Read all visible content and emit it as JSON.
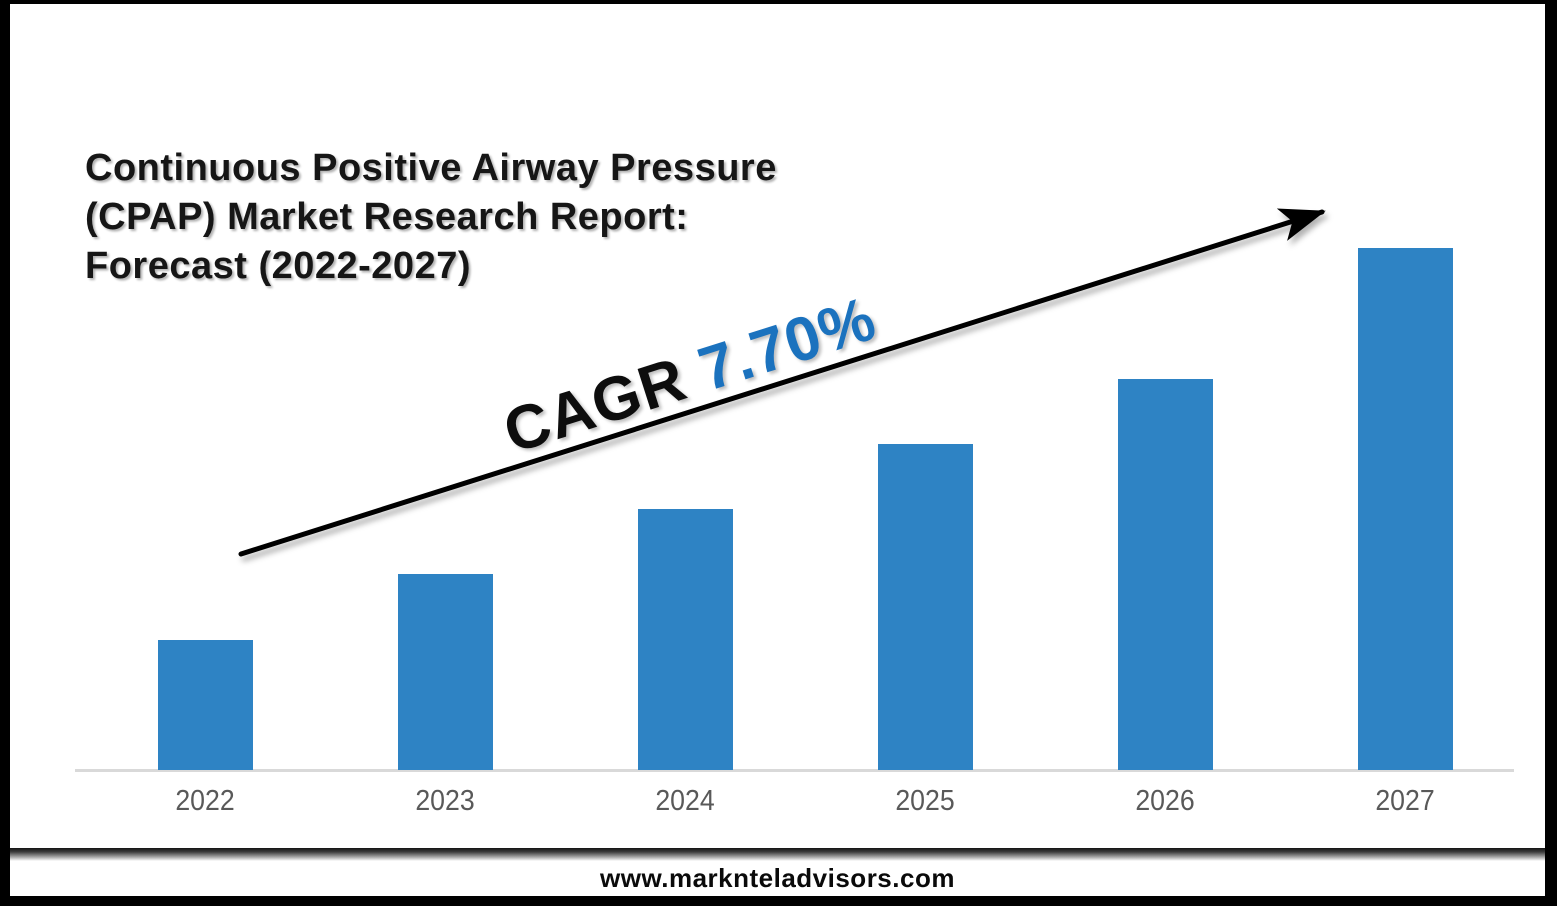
{
  "page": {
    "title_lines": [
      "Continuous Positive Airway Pressure",
      "(CPAP) Market Research Report:",
      "Forecast (2022-2027)"
    ],
    "footer_url": "www.marknteladvisors.com"
  },
  "annotation": {
    "cagr_label": "CAGR ",
    "cagr_value": "7.70%"
  },
  "colors": {
    "bar_blue": "#2e83c4",
    "cagr_value_blue": "#1b72be",
    "title_black": "#161616",
    "axis_gray": "#d9d9d9",
    "x_label_gray": "#595959",
    "frame_black": "#000000"
  },
  "chart_data": {
    "type": "bar",
    "title": "Continuous Positive Airway Pressure (CPAP) Market Research Report: Forecast (2022-2027)",
    "categories": [
      "2022",
      "2023",
      "2024",
      "2025",
      "2026",
      "2027"
    ],
    "values": [
      130,
      196,
      261,
      326,
      391,
      522
    ],
    "value_note": "relative bar heights (no numeric value axis shown in source image)",
    "xlabel": "",
    "ylabel": "",
    "ylim": [
      0,
      560
    ],
    "grid": false,
    "legend": "none",
    "bar_color": "#2e83c4",
    "annotations": [
      "CAGR 7.70%",
      "upward trend arrow from 2022 toward 2027"
    ]
  }
}
